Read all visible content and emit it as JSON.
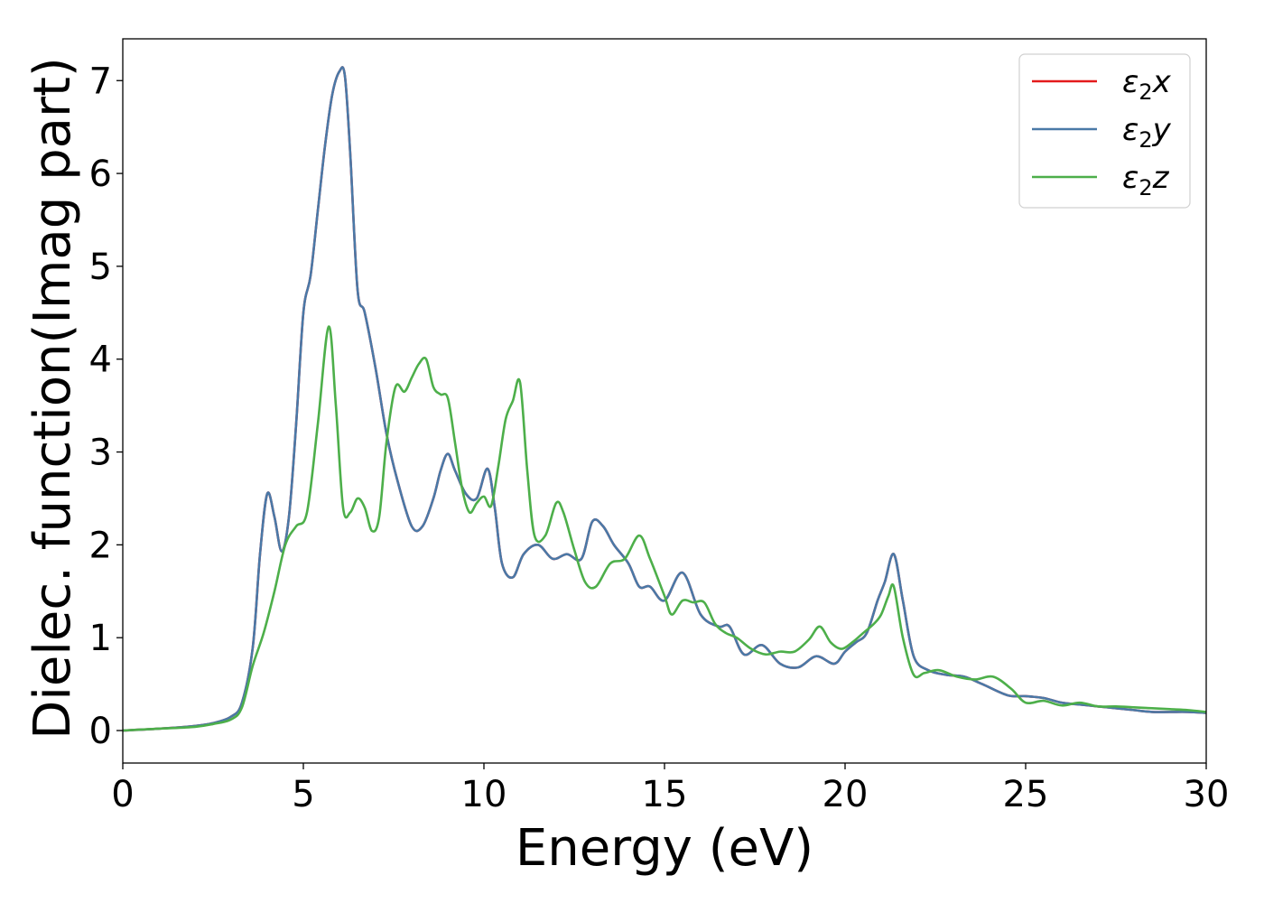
{
  "chart_data": {
    "type": "line",
    "xlabel": "Energy (eV)",
    "ylabel": "Dielec. function(Imag part)",
    "xlim": [
      0,
      30
    ],
    "ylim": [
      -0.35,
      7.45
    ],
    "xticks": [
      0,
      5,
      10,
      15,
      20,
      25,
      30
    ],
    "yticks": [
      0,
      1,
      2,
      3,
      4,
      5,
      6,
      7
    ],
    "grid": false,
    "legend_position": "top-right",
    "series": [
      {
        "name": "ε2x",
        "legend_base": "ε",
        "legend_sub": "2",
        "legend_suffix": "x",
        "color": "#e41a1c",
        "x": [
          0,
          1,
          2,
          2.5,
          3,
          3.3,
          3.6,
          3.8,
          4.0,
          4.2,
          4.4,
          4.6,
          4.8,
          5.0,
          5.2,
          5.4,
          5.6,
          5.8,
          6.0,
          6.15,
          6.3,
          6.5,
          6.7,
          7.0,
          7.3,
          7.6,
          8.0,
          8.3,
          8.6,
          8.8,
          9.0,
          9.2,
          9.5,
          9.8,
          10.1,
          10.3,
          10.5,
          10.8,
          11.1,
          11.5,
          11.9,
          12.3,
          12.7,
          13.0,
          13.3,
          13.6,
          14.0,
          14.3,
          14.6,
          15.0,
          15.5,
          16.0,
          16.5,
          16.8,
          17.2,
          17.7,
          18.2,
          18.7,
          19.2,
          19.7,
          20.0,
          20.3,
          20.6,
          20.9,
          21.1,
          21.35,
          21.6,
          21.9,
          22.3,
          22.8,
          23.3,
          23.8,
          24.5,
          25.0,
          25.5,
          26.0,
          26.5,
          27.0,
          27.5,
          28.0,
          28.5,
          29.0,
          29.5,
          30.0
        ],
        "values": [
          0.0,
          0.02,
          0.05,
          0.08,
          0.15,
          0.3,
          0.9,
          1.9,
          2.55,
          2.3,
          1.93,
          2.3,
          3.3,
          4.5,
          4.9,
          5.6,
          6.3,
          6.85,
          7.1,
          7.05,
          6.2,
          4.75,
          4.5,
          3.9,
          3.2,
          2.7,
          2.2,
          2.2,
          2.5,
          2.8,
          2.98,
          2.8,
          2.55,
          2.5,
          2.82,
          2.4,
          1.8,
          1.65,
          1.9,
          2.0,
          1.85,
          1.9,
          1.85,
          2.25,
          2.2,
          2.0,
          1.8,
          1.55,
          1.55,
          1.4,
          1.7,
          1.25,
          1.12,
          1.12,
          0.82,
          0.92,
          0.72,
          0.68,
          0.8,
          0.72,
          0.85,
          0.95,
          1.05,
          1.4,
          1.6,
          1.9,
          1.4,
          0.8,
          0.65,
          0.6,
          0.58,
          0.5,
          0.38,
          0.37,
          0.35,
          0.3,
          0.28,
          0.26,
          0.24,
          0.22,
          0.2,
          0.2,
          0.2,
          0.19
        ]
      },
      {
        "name": "ε2y",
        "legend_base": "ε",
        "legend_sub": "2",
        "legend_suffix": "y",
        "color": "#4a79a7",
        "x": [
          0,
          1,
          2,
          2.5,
          3,
          3.3,
          3.6,
          3.8,
          4.0,
          4.2,
          4.4,
          4.6,
          4.8,
          5.0,
          5.2,
          5.4,
          5.6,
          5.8,
          6.0,
          6.15,
          6.3,
          6.5,
          6.7,
          7.0,
          7.3,
          7.6,
          8.0,
          8.3,
          8.6,
          8.8,
          9.0,
          9.2,
          9.5,
          9.8,
          10.1,
          10.3,
          10.5,
          10.8,
          11.1,
          11.5,
          11.9,
          12.3,
          12.7,
          13.0,
          13.3,
          13.6,
          14.0,
          14.3,
          14.6,
          15.0,
          15.5,
          16.0,
          16.5,
          16.8,
          17.2,
          17.7,
          18.2,
          18.7,
          19.2,
          19.7,
          20.0,
          20.3,
          20.6,
          20.9,
          21.1,
          21.35,
          21.6,
          21.9,
          22.3,
          22.8,
          23.3,
          23.8,
          24.5,
          25.0,
          25.5,
          26.0,
          26.5,
          27.0,
          27.5,
          28.0,
          28.5,
          29.0,
          29.5,
          30.0
        ],
        "values": [
          0.0,
          0.02,
          0.05,
          0.08,
          0.15,
          0.3,
          0.9,
          1.9,
          2.55,
          2.3,
          1.93,
          2.3,
          3.3,
          4.5,
          4.9,
          5.6,
          6.3,
          6.85,
          7.1,
          7.05,
          6.2,
          4.75,
          4.5,
          3.9,
          3.2,
          2.7,
          2.2,
          2.2,
          2.5,
          2.8,
          2.98,
          2.8,
          2.55,
          2.5,
          2.82,
          2.4,
          1.8,
          1.65,
          1.9,
          2.0,
          1.85,
          1.9,
          1.85,
          2.25,
          2.2,
          2.0,
          1.8,
          1.55,
          1.55,
          1.4,
          1.7,
          1.25,
          1.12,
          1.12,
          0.82,
          0.92,
          0.72,
          0.68,
          0.8,
          0.72,
          0.85,
          0.95,
          1.05,
          1.4,
          1.6,
          1.9,
          1.4,
          0.8,
          0.65,
          0.6,
          0.58,
          0.5,
          0.38,
          0.37,
          0.35,
          0.3,
          0.28,
          0.26,
          0.24,
          0.22,
          0.2,
          0.2,
          0.2,
          0.19
        ]
      },
      {
        "name": "ε2z",
        "legend_base": "ε",
        "legend_sub": "2",
        "legend_suffix": "z",
        "color": "#4daf4a",
        "x": [
          0,
          1,
          2,
          2.5,
          3,
          3.3,
          3.6,
          3.9,
          4.2,
          4.5,
          4.8,
          5.1,
          5.4,
          5.7,
          5.9,
          6.1,
          6.3,
          6.5,
          6.7,
          6.9,
          7.1,
          7.3,
          7.55,
          7.8,
          8.0,
          8.2,
          8.4,
          8.6,
          8.8,
          9.0,
          9.2,
          9.4,
          9.6,
          9.8,
          10.0,
          10.2,
          10.4,
          10.6,
          10.8,
          11.0,
          11.2,
          11.4,
          11.7,
          12.0,
          12.2,
          12.5,
          12.8,
          13.1,
          13.5,
          13.9,
          14.3,
          14.6,
          15.0,
          15.2,
          15.5,
          15.8,
          16.1,
          16.4,
          16.7,
          17.0,
          17.4,
          17.8,
          18.2,
          18.6,
          19.0,
          19.3,
          19.6,
          19.9,
          20.2,
          20.5,
          20.8,
          21.0,
          21.2,
          21.35,
          21.6,
          21.9,
          22.2,
          22.6,
          23.1,
          23.6,
          24.1,
          24.6,
          25.0,
          25.5,
          26.0,
          26.5,
          27.0,
          27.5,
          28.0,
          28.5,
          29.0,
          29.5,
          30.0
        ],
        "values": [
          0.0,
          0.02,
          0.04,
          0.07,
          0.12,
          0.25,
          0.7,
          1.05,
          1.5,
          2.0,
          2.2,
          2.35,
          3.3,
          4.35,
          3.5,
          2.4,
          2.35,
          2.5,
          2.4,
          2.15,
          2.3,
          3.1,
          3.7,
          3.65,
          3.8,
          3.95,
          4.0,
          3.7,
          3.62,
          3.58,
          3.1,
          2.6,
          2.35,
          2.45,
          2.52,
          2.42,
          2.85,
          3.35,
          3.55,
          3.75,
          2.8,
          2.1,
          2.1,
          2.45,
          2.35,
          1.95,
          1.6,
          1.55,
          1.8,
          1.85,
          2.1,
          1.85,
          1.45,
          1.25,
          1.4,
          1.38,
          1.38,
          1.15,
          1.05,
          1.0,
          0.88,
          0.82,
          0.85,
          0.85,
          0.98,
          1.12,
          0.95,
          0.88,
          0.95,
          1.05,
          1.15,
          1.25,
          1.45,
          1.55,
          1.0,
          0.6,
          0.62,
          0.65,
          0.58,
          0.55,
          0.58,
          0.45,
          0.3,
          0.32,
          0.27,
          0.3,
          0.26,
          0.26,
          0.25,
          0.24,
          0.23,
          0.22,
          0.2
        ]
      }
    ]
  }
}
